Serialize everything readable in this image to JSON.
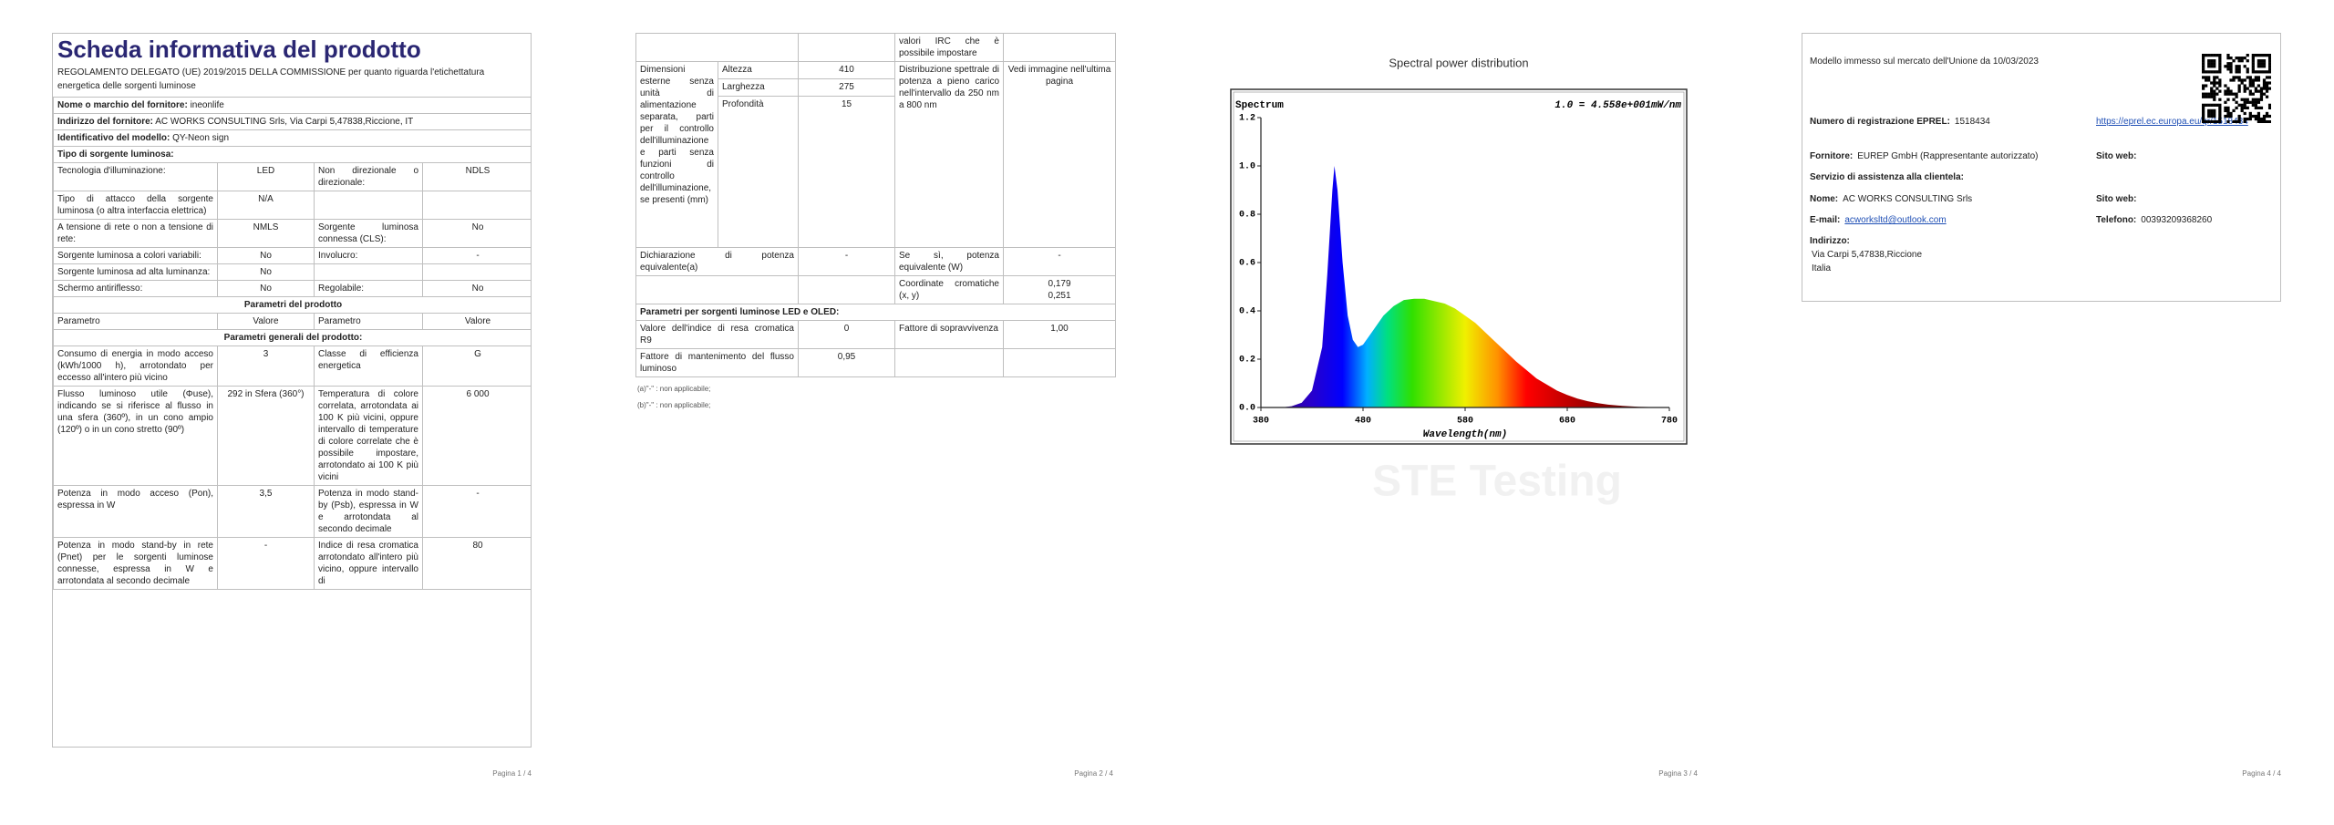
{
  "pages": [
    {
      "title": "Scheda informativa del prodotto",
      "intro": "REGOLAMENTO DELEGATO (UE) 2019/2015 DELLA COMMISSIONE per quanto riguarda l'etichettatura energetica delle sorgenti luminose",
      "rows": [
        {
          "label": "Nome o marchio del fornitore:",
          "value": "ineonlife"
        },
        {
          "label": "Indirizzo del fornitore:",
          "value": "AC WORKS CONSULTING Srls, Via Carpi 5,47838,Riccione, IT"
        },
        {
          "label": "Identificativo del modello:",
          "value": "QY-Neon sign"
        },
        {
          "section": "Tipo di sorgente luminosa:"
        },
        [
          "Tecnologia d'illuminazione:",
          "LED",
          "Non direzionale o direzionale:",
          "NDLS"
        ],
        [
          "Tipo di attacco della sorgente luminosa (o altra interfaccia elettrica)",
          "N/A",
          null,
          null
        ],
        [
          "A tensione di rete o non a tensione di rete:",
          "NMLS",
          "Sorgente luminosa connessa (CLS):",
          "No"
        ],
        [
          "Sorgente luminosa a colori variabili:",
          "No",
          "Involucro:",
          "-"
        ],
        [
          "Sorgente luminosa ad alta luminanza:",
          "No",
          null,
          null
        ],
        [
          "Schermo antiriflesso:",
          "No",
          "Regolabile:",
          "No"
        ],
        {
          "heading": "Parametri del prodotto"
        },
        [
          "Parametro",
          "Valore",
          "Parametro",
          "Valore"
        ],
        {
          "heading": "Parametri generali del prodotto:"
        },
        [
          "Consumo di energia in modo acceso (kWh/1000 h), arrotondato per eccesso all'intero più vicino",
          "3",
          "Classe di efficienza energetica",
          "G"
        ],
        [
          "Flusso luminoso utile (Φuse), indicando se si riferisce al flusso in una sfera (360º), in un cono ampio (120º) o in un cono stretto (90º)",
          "292 in Sfera (360°)",
          "Temperatura di colore correlata, arrotondata ai 100 K più vicini, oppure intervallo di temperature di colore correlate che è possibile impostare, arrotondato ai 100 K più vicini",
          "6 000"
        ],
        [
          "Potenza in modo acceso (Pon), espressa in W",
          "3,5",
          "Potenza in modo stand-by (Psb), espressa in W e arrotondata al secondo decimale",
          "-"
        ],
        [
          "Potenza in modo stand-by in rete (Pnet) per le sorgenti luminose connesse, espressa in W e arrotondata al secondo decimale",
          "-",
          "Indice di resa cromatica arrotondato all'intero più vicino, oppure intervallo di",
          "80"
        ]
      ],
      "footer": "Pagina 1 / 4"
    },
    {
      "rows": [
        [
          null,
          null,
          "valori IRC che è possibile impostare",
          null
        ],
        {
          "dims": {
            "label": "Dimensioni esterne senza unità di alimentazione separata, parti per il controllo dell'illuminazione e parti senza funzioni di controllo dell'illuminazione, se presenti (mm)",
            "rows": [
              [
                "Altezza",
                "410"
              ],
              [
                "Larghezza",
                "275"
              ],
              [
                "Profondità",
                "15"
              ]
            ],
            "param": "Distribuzione spettrale di potenza a pieno carico nell'intervallo da 250 nm a 800 nm",
            "value": "Vedi immagine nell'ultima pagina"
          }
        },
        [
          "Dichiarazione di potenza equivalente(a)",
          "-",
          "Se sì, potenza equivalente (W)",
          "-"
        ],
        [
          null,
          null,
          "Coordinate cromatiche (x, y)",
          [
            "0,179",
            "0,251"
          ]
        ],
        {
          "section": "Parametri per sorgenti luminose LED e OLED:"
        },
        [
          "Valore dell'indice di resa cromatica R9",
          "0",
          "Fattore di sopravvivenza",
          "1,00"
        ],
        [
          "Fattore di mantenimento del flusso luminoso",
          "0,95",
          null,
          null
        ]
      ],
      "notes": [
        "(a)\"-\" : non applicabile;",
        "(b)\"-\" : non applicabile;"
      ],
      "footer": "Pagina 2 / 4"
    },
    {
      "chart_data": {
        "type": "area",
        "title": "Spectral power distribution",
        "y_title": "Spectrum",
        "scale_note": "1.0 = 4.558e+001mW/nm",
        "x_label": "Wavelength(nm)",
        "watermark": "STE Testing",
        "x": [
          380,
          390,
          400,
          410,
          420,
          430,
          440,
          445,
          450,
          452,
          455,
          460,
          465,
          470,
          475,
          480,
          490,
          500,
          510,
          520,
          530,
          540,
          550,
          560,
          570,
          580,
          590,
          600,
          610,
          620,
          630,
          640,
          650,
          660,
          670,
          680,
          690,
          700,
          710,
          720,
          730,
          740,
          750,
          760,
          770,
          780
        ],
        "values": [
          0,
          0,
          0,
          0.005,
          0.02,
          0.07,
          0.25,
          0.55,
          0.9,
          1.0,
          0.9,
          0.6,
          0.38,
          0.28,
          0.25,
          0.26,
          0.32,
          0.38,
          0.42,
          0.445,
          0.45,
          0.45,
          0.44,
          0.43,
          0.41,
          0.38,
          0.35,
          0.31,
          0.27,
          0.23,
          0.19,
          0.155,
          0.12,
          0.095,
          0.07,
          0.052,
          0.037,
          0.026,
          0.018,
          0.012,
          0.008,
          0.005,
          0.003,
          0.002,
          0.001,
          0
        ],
        "xlim": [
          380,
          780
        ],
        "xticks": [
          380,
          480,
          580,
          680,
          780
        ],
        "ylim": [
          0,
          1.2
        ],
        "yticks": [
          {
            "value": 0,
            "label": "0.0"
          },
          0.2,
          0.4,
          0.6,
          0.8,
          {
            "value": 1,
            "label": "1.0"
          },
          {
            "value": 1.2,
            "label": "1.2"
          }
        ]
      },
      "footer": "Pagina 3 / 4"
    },
    {
      "market": "Modello immesso sul mercato dell'Unione da 10/03/2023",
      "fields": [
        [
          {
            "label": "Numero di registrazione EPREL:",
            "value": "1518434"
          },
          {
            "link": "https://eprel.ec.europa.eu/qr/1518434"
          }
        ],
        [
          {
            "label": "Fornitore:",
            "value": "EUREP GmbH (Rappresentante autorizzato)"
          },
          {
            "label": "Sito web:"
          }
        ],
        [
          {
            "label": "Servizio di assistenza alla clientela:"
          }
        ],
        [
          {
            "label": "Nome:",
            "value": "AC WORKS CONSULTING Srls"
          },
          {
            "label": "Sito web:"
          }
        ],
        [
          {
            "label": "E-mail:",
            "link": "acworksltd@outlook.com"
          },
          {
            "label": "Telefono:",
            "value": "00393209368260"
          }
        ],
        [
          {
            "label": "Indirizzo:"
          }
        ]
      ],
      "address": [
        "Via Carpi 5,47838,Riccione",
        "Italia"
      ],
      "footer": "Pagina 4 / 4"
    }
  ]
}
